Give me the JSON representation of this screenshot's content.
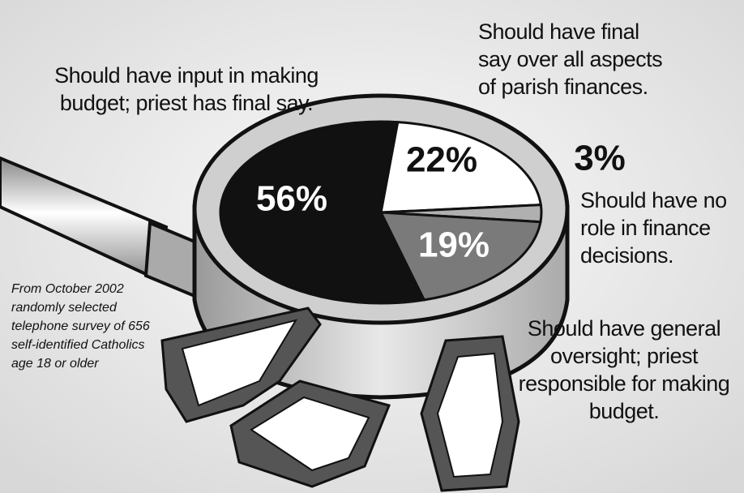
{
  "chart_data": {
    "type": "pie",
    "categories": [
      "Should have input in making budget; priest has final say.",
      "Should have final say over all aspects of parish finances.",
      "Should have no role in finance decisions.",
      "Should have general oversight; priest responsible for making budget."
    ],
    "values": [
      56,
      22,
      3,
      19
    ],
    "value_labels": [
      "56%",
      "22%",
      "3%",
      "19%"
    ],
    "colors": [
      "#111111",
      "#ffffff",
      "#b0b0b0",
      "#7a7a7a"
    ],
    "note": "From October 2002 randomly selected telephone survey of 656 self-identified Catholics age 18 or older"
  }
}
